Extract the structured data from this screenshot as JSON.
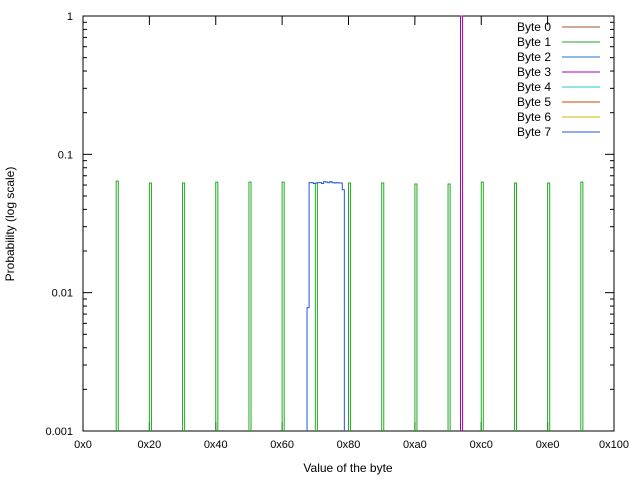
{
  "chart_data": {
    "type": "line",
    "xlabel": "Value of the byte",
    "ylabel": "Probability (log scale)",
    "xlim": [
      0,
      256
    ],
    "ylim": [
      0.001,
      1
    ],
    "yscale": "log",
    "grid": false,
    "legend_position": "top-right",
    "x_ticks": [
      {
        "value": 0,
        "label": "0x0"
      },
      {
        "value": 32,
        "label": "0x20"
      },
      {
        "value": 64,
        "label": "0x40"
      },
      {
        "value": 96,
        "label": "0x60"
      },
      {
        "value": 128,
        "label": "0x80"
      },
      {
        "value": 160,
        "label": "0xa0"
      },
      {
        "value": 192,
        "label": "0xc0"
      },
      {
        "value": 224,
        "label": "0xe0"
      },
      {
        "value": 256,
        "label": "0x100"
      }
    ],
    "y_ticks": [
      {
        "value": 0.001,
        "label": "0.001"
      },
      {
        "value": 0.01,
        "label": "0.01"
      },
      {
        "value": 0.1,
        "label": "0.1"
      },
      {
        "value": 1,
        "label": "1"
      }
    ],
    "series": [
      {
        "name": "Byte 0",
        "color": "#a0522d",
        "points": []
      },
      {
        "name": "Byte 1",
        "color": "#22aa22",
        "points": [
          [
            16,
            0.064
          ],
          [
            32,
            0.062
          ],
          [
            48,
            0.062
          ],
          [
            64,
            0.063
          ],
          [
            80,
            0.063
          ],
          [
            96,
            0.063
          ],
          [
            112,
            0.062
          ],
          [
            128,
            0.062
          ],
          [
            144,
            0.062
          ],
          [
            160,
            0.061
          ],
          [
            176,
            0.061
          ],
          [
            192,
            0.063
          ],
          [
            208,
            0.062
          ],
          [
            224,
            0.062
          ],
          [
            240,
            0.063
          ]
        ]
      },
      {
        "name": "Byte 2",
        "color": "#1e6fd9",
        "points": []
      },
      {
        "name": "Byte 3",
        "color": "#aa00aa",
        "points": [
          [
            182,
            1
          ]
        ]
      },
      {
        "name": "Byte 4",
        "color": "#22cccc",
        "points": []
      },
      {
        "name": "Byte 5",
        "color": "#cc4400",
        "points": []
      },
      {
        "name": "Byte 6",
        "color": "#ccbb00",
        "points": []
      },
      {
        "name": "Byte 7",
        "color": "#2255dd",
        "points": [
          [
            108,
            0.0078
          ],
          [
            109,
            0.0625
          ],
          [
            110,
            0.0625
          ],
          [
            111,
            0.0615
          ],
          [
            112,
            0.062
          ],
          [
            113,
            0.0625
          ],
          [
            114,
            0.0625
          ],
          [
            115,
            0.0615
          ],
          [
            116,
            0.0635
          ],
          [
            117,
            0.063
          ],
          [
            118,
            0.0625
          ],
          [
            119,
            0.0635
          ],
          [
            120,
            0.0625
          ],
          [
            121,
            0.062
          ],
          [
            122,
            0.0625
          ],
          [
            123,
            0.062
          ],
          [
            124,
            0.062
          ],
          [
            125,
            0.0555
          ]
        ]
      }
    ]
  }
}
